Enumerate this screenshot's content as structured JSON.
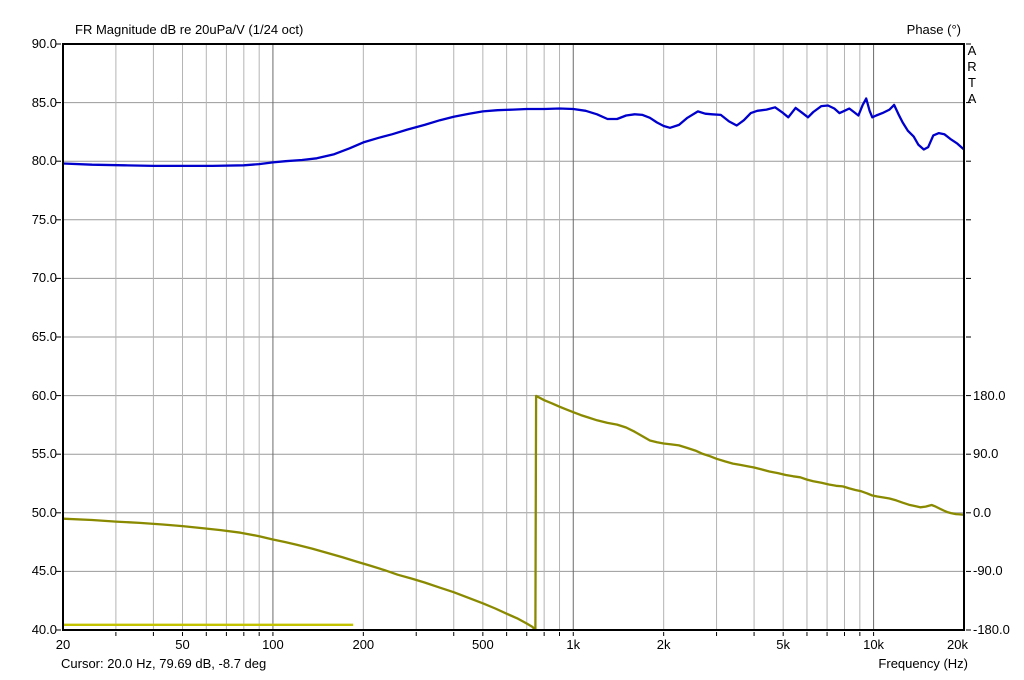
{
  "header": {
    "title": "FR Magnitude dB re 20uPa/V (1/24 oct)",
    "phase_title": "Phase (°)"
  },
  "watermark": "ARTA",
  "status": {
    "cursor": "Cursor: 20.0 Hz, 79.69 dB, -8.7 deg",
    "frequency_label": "Frequency (Hz)"
  },
  "colors": {
    "magnitude": "#0000cd",
    "phase": "#8a8a00",
    "aux": "#c3c300",
    "grid_minor": "#b4b4b4",
    "grid_major": "#6b6b6b",
    "grid_horizontal": "#9a9a9a",
    "axis": "#000000",
    "background": "#ffffff",
    "text": "#000000"
  },
  "chart_data": {
    "type": "line",
    "title": "FR Magnitude dB re 20uPa/V (1/24 oct)",
    "x_axis": {
      "label": "Frequency (Hz)",
      "scale": "log",
      "min": 20,
      "max": 20000,
      "ticks": [
        {
          "f": 20,
          "label": "20"
        },
        {
          "f": 50,
          "label": "50"
        },
        {
          "f": 100,
          "label": "100"
        },
        {
          "f": 200,
          "label": "200"
        },
        {
          "f": 500,
          "label": "500"
        },
        {
          "f": 1000,
          "label": "1k"
        },
        {
          "f": 2000,
          "label": "2k"
        },
        {
          "f": 5000,
          "label": "5k"
        },
        {
          "f": 10000,
          "label": "10k"
        },
        {
          "f": 20000,
          "label": "20k"
        }
      ],
      "minor_gridlines": [
        30,
        40,
        50,
        60,
        70,
        80,
        90,
        200,
        300,
        400,
        500,
        600,
        700,
        800,
        900,
        2000,
        3000,
        4000,
        5000,
        6000,
        7000,
        8000,
        9000
      ],
      "major_gridlines": [
        100,
        1000,
        10000
      ]
    },
    "y_left_axis": {
      "label": "dB",
      "min": 40,
      "max": 90,
      "step": 5,
      "tick_labels": [
        "90.0",
        "85.0",
        "80.0",
        "75.0",
        "70.0",
        "65.0",
        "60.0",
        "55.0",
        "50.0",
        "45.0",
        "40.0"
      ]
    },
    "y_right_axis": {
      "label": "Phase (°)",
      "min": -180,
      "max": 180,
      "maps_to_db_range": [
        40,
        60
      ],
      "ticks": [
        {
          "deg": 180,
          "label": "180.0"
        },
        {
          "deg": 90,
          "label": "90.0"
        },
        {
          "deg": 0,
          "label": "0.0"
        },
        {
          "deg": -90,
          "label": "-90.0"
        },
        {
          "deg": -180,
          "label": "-180.0"
        }
      ]
    },
    "cursor": {
      "frequency_hz": 20.0,
      "magnitude_db": 79.69,
      "phase_deg": -8.7
    },
    "series": [
      {
        "name": "magnitude",
        "unit": "dB",
        "color_key": "magnitude",
        "points": [
          [
            20,
            79.8
          ],
          [
            25,
            79.7
          ],
          [
            32,
            79.65
          ],
          [
            40,
            79.6
          ],
          [
            50,
            79.6
          ],
          [
            63,
            79.6
          ],
          [
            80,
            79.65
          ],
          [
            90,
            79.75
          ],
          [
            100,
            79.9
          ],
          [
            110,
            80.0
          ],
          [
            125,
            80.1
          ],
          [
            140,
            80.25
          ],
          [
            160,
            80.6
          ],
          [
            180,
            81.1
          ],
          [
            200,
            81.6
          ],
          [
            225,
            82.0
          ],
          [
            250,
            82.3
          ],
          [
            280,
            82.7
          ],
          [
            320,
            83.1
          ],
          [
            360,
            83.5
          ],
          [
            400,
            83.8
          ],
          [
            450,
            84.05
          ],
          [
            500,
            84.25
          ],
          [
            560,
            84.35
          ],
          [
            630,
            84.4
          ],
          [
            700,
            84.45
          ],
          [
            800,
            84.45
          ],
          [
            900,
            84.5
          ],
          [
            1000,
            84.45
          ],
          [
            1100,
            84.3
          ],
          [
            1200,
            84.0
          ],
          [
            1300,
            83.6
          ],
          [
            1400,
            83.6
          ],
          [
            1500,
            83.9
          ],
          [
            1600,
            84.0
          ],
          [
            1700,
            83.95
          ],
          [
            1800,
            83.7
          ],
          [
            1900,
            83.3
          ],
          [
            2000,
            83.0
          ],
          [
            2100,
            82.85
          ],
          [
            2250,
            83.1
          ],
          [
            2400,
            83.7
          ],
          [
            2600,
            84.25
          ],
          [
            2750,
            84.05
          ],
          [
            2900,
            84.0
          ],
          [
            3100,
            83.95
          ],
          [
            3300,
            83.4
          ],
          [
            3500,
            83.05
          ],
          [
            3700,
            83.5
          ],
          [
            3900,
            84.1
          ],
          [
            4100,
            84.3
          ],
          [
            4400,
            84.4
          ],
          [
            4700,
            84.6
          ],
          [
            5000,
            84.1
          ],
          [
            5200,
            83.75
          ],
          [
            5500,
            84.55
          ],
          [
            5800,
            84.1
          ],
          [
            6050,
            83.75
          ],
          [
            6300,
            84.2
          ],
          [
            6700,
            84.7
          ],
          [
            7050,
            84.75
          ],
          [
            7400,
            84.5
          ],
          [
            7700,
            84.1
          ],
          [
            8000,
            84.3
          ],
          [
            8300,
            84.5
          ],
          [
            8600,
            84.2
          ],
          [
            8900,
            83.9
          ],
          [
            9200,
            84.8
          ],
          [
            9450,
            85.35
          ],
          [
            9700,
            84.3
          ],
          [
            9900,
            83.75
          ],
          [
            10200,
            83.9
          ],
          [
            10700,
            84.1
          ],
          [
            11300,
            84.4
          ],
          [
            11700,
            84.8
          ],
          [
            12100,
            84.0
          ],
          [
            12500,
            83.3
          ],
          [
            13000,
            82.6
          ],
          [
            13600,
            82.1
          ],
          [
            14100,
            81.4
          ],
          [
            14700,
            81.0
          ],
          [
            15200,
            81.2
          ],
          [
            15800,
            82.2
          ],
          [
            16500,
            82.4
          ],
          [
            17200,
            82.3
          ],
          [
            18000,
            81.9
          ],
          [
            19000,
            81.5
          ],
          [
            20000,
            81.0
          ]
        ]
      },
      {
        "name": "phase",
        "unit": "deg",
        "color_key": "phase",
        "points": [
          [
            20,
            -9
          ],
          [
            25,
            -11
          ],
          [
            30,
            -13.5
          ],
          [
            36,
            -15.5
          ],
          [
            43,
            -18
          ],
          [
            50,
            -20.5
          ],
          [
            58,
            -23.5
          ],
          [
            67,
            -26.5
          ],
          [
            78,
            -30.5
          ],
          [
            90,
            -36
          ],
          [
            100,
            -41
          ],
          [
            110,
            -45
          ],
          [
            120,
            -49
          ],
          [
            135,
            -55
          ],
          [
            150,
            -61
          ],
          [
            170,
            -68
          ],
          [
            190,
            -75
          ],
          [
            210,
            -81
          ],
          [
            235,
            -88
          ],
          [
            260,
            -95
          ],
          [
            290,
            -101
          ],
          [
            320,
            -107
          ],
          [
            360,
            -115
          ],
          [
            400,
            -122
          ],
          [
            450,
            -131
          ],
          [
            500,
            -139
          ],
          [
            550,
            -147
          ],
          [
            600,
            -155
          ],
          [
            650,
            -162
          ],
          [
            700,
            -170
          ],
          [
            730,
            -175
          ],
          [
            748,
            -180
          ],
          [
            752,
            179.5
          ],
          [
            800,
            173
          ],
          [
            850,
            168
          ],
          [
            900,
            163
          ],
          [
            950,
            158.5
          ],
          [
            1000,
            154.5
          ],
          [
            1060,
            150
          ],
          [
            1120,
            146.5
          ],
          [
            1200,
            142
          ],
          [
            1300,
            138
          ],
          [
            1400,
            135.5
          ],
          [
            1500,
            131
          ],
          [
            1600,
            124.5
          ],
          [
            1700,
            117.5
          ],
          [
            1800,
            111
          ],
          [
            1900,
            108.5
          ],
          [
            2000,
            106.5
          ],
          [
            2120,
            105
          ],
          [
            2250,
            103.5
          ],
          [
            2400,
            99.5
          ],
          [
            2550,
            95.5
          ],
          [
            2700,
            90.5
          ],
          [
            2850,
            87
          ],
          [
            3000,
            83
          ],
          [
            3200,
            79
          ],
          [
            3400,
            75.5
          ],
          [
            3600,
            73.5
          ],
          [
            3800,
            71.5
          ],
          [
            4000,
            69.5
          ],
          [
            4250,
            66.5
          ],
          [
            4500,
            63.5
          ],
          [
            4800,
            61
          ],
          [
            5100,
            58
          ],
          [
            5400,
            56
          ],
          [
            5700,
            54.5
          ],
          [
            6000,
            51
          ],
          [
            6300,
            48.5
          ],
          [
            6700,
            46
          ],
          [
            7100,
            43.5
          ],
          [
            7500,
            41.5
          ],
          [
            7900,
            40.5
          ],
          [
            8300,
            37.5
          ],
          [
            8700,
            35
          ],
          [
            9100,
            33
          ],
          [
            9500,
            30
          ],
          [
            9900,
            26.5
          ],
          [
            10300,
            25
          ],
          [
            10800,
            23.5
          ],
          [
            11300,
            22
          ],
          [
            11900,
            19
          ],
          [
            12500,
            15.5
          ],
          [
            13100,
            12.5
          ],
          [
            13700,
            10.5
          ],
          [
            14300,
            8.5
          ],
          [
            14900,
            9.5
          ],
          [
            15600,
            12
          ],
          [
            16100,
            9.5
          ],
          [
            16600,
            6.5
          ],
          [
            17100,
            3.5
          ],
          [
            17600,
            1
          ],
          [
            18100,
            -0.5
          ],
          [
            18800,
            -2
          ],
          [
            19400,
            -2.5
          ],
          [
            20000,
            -3
          ]
        ]
      },
      {
        "name": "aux-low-frequency-marker",
        "unit": "deg",
        "color_key": "aux",
        "points": [
          [
            20,
            -172
          ],
          [
            185,
            -172
          ]
        ]
      }
    ]
  }
}
